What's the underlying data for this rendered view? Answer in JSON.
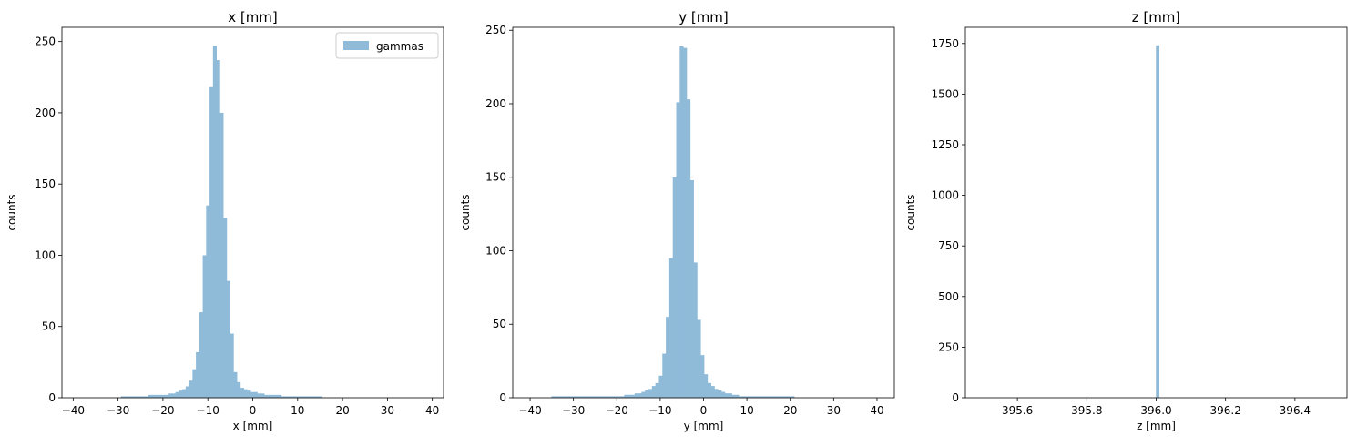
{
  "chart_data": [
    {
      "type": "bar",
      "title": "x [mm]",
      "xlabel": "x [mm]",
      "ylabel": "counts",
      "xlim": [
        -42.5,
        42.5
      ],
      "ylim": [
        0,
        260
      ],
      "xticks": [
        -40,
        -30,
        -20,
        -10,
        0,
        10,
        20,
        30,
        40
      ],
      "yticks": [
        0,
        50,
        100,
        150,
        200,
        250
      ],
      "grid": false,
      "legend": "top-right",
      "series": [
        {
          "name": "gammas",
          "color": "#8fbbd9",
          "bin_edges": [
            -38.5,
            37.5
          ],
          "values": [
            0,
            0,
            0,
            0,
            0,
            0,
            0,
            0,
            0,
            0,
            0,
            0,
            1,
            1,
            1,
            1,
            1,
            1,
            1,
            1,
            2,
            2,
            2,
            2,
            2,
            2,
            3,
            3,
            4,
            5,
            6,
            8,
            12,
            20,
            32,
            60,
            100,
            135,
            218,
            247,
            237,
            200,
            126,
            82,
            45,
            18,
            11,
            7,
            6,
            5,
            4,
            4,
            3,
            3,
            2,
            2,
            2,
            2,
            2,
            1,
            1,
            1,
            1,
            1,
            1,
            1,
            1,
            1,
            1,
            1,
            1,
            0,
            0,
            0,
            0,
            0,
            0,
            0,
            0,
            0,
            0,
            0,
            0,
            0,
            0,
            0,
            0,
            0,
            0,
            0,
            0,
            0,
            0,
            0,
            0,
            0,
            0,
            0,
            0,
            0
          ]
        }
      ]
    },
    {
      "type": "bar",
      "title": "y [mm]",
      "xlabel": "y [mm]",
      "ylabel": "counts",
      "xlim": [
        -44,
        44
      ],
      "ylim": [
        0,
        252
      ],
      "xticks": [
        -40,
        -30,
        -20,
        -10,
        0,
        10,
        20,
        30,
        40
      ],
      "yticks": [
        0,
        50,
        100,
        150,
        200,
        250
      ],
      "grid": false,
      "series": [
        {
          "name": "",
          "color": "#8fbbd9",
          "bin_edges": [
            -39.9,
            40.1
          ],
          "values": [
            0,
            0,
            0,
            0,
            0,
            0,
            1,
            1,
            1,
            1,
            1,
            1,
            1,
            1,
            1,
            1,
            1,
            1,
            1,
            1,
            1,
            1,
            1,
            1,
            1,
            1,
            1,
            2,
            2,
            2,
            3,
            3,
            4,
            5,
            6,
            8,
            10,
            15,
            30,
            55,
            95,
            150,
            201,
            239,
            238,
            203,
            148,
            92,
            53,
            29,
            16,
            10,
            8,
            6,
            5,
            4,
            3,
            3,
            2,
            2,
            1,
            1,
            1,
            1,
            1,
            1,
            1,
            1,
            1,
            1,
            1,
            1,
            1,
            1,
            1,
            1,
            0,
            0,
            0,
            0,
            0,
            0,
            0,
            0,
            0,
            0,
            0,
            0,
            0,
            0,
            0,
            0,
            0,
            0,
            0,
            0,
            0,
            0,
            0,
            0
          ]
        }
      ]
    },
    {
      "type": "bar",
      "title": "z [mm]",
      "xlabel": "z [mm]",
      "ylabel": "counts",
      "xlim": [
        395.45,
        396.55
      ],
      "ylim": [
        0,
        1830
      ],
      "xticks": [
        395.6,
        395.8,
        396.0,
        396.2,
        396.4
      ],
      "xtick_labels": [
        "395.6",
        "395.8",
        "396.0",
        "396.2",
        "396.4"
      ],
      "yticks": [
        0,
        250,
        500,
        750,
        1000,
        1250,
        1500,
        1750
      ],
      "grid": false,
      "series": [
        {
          "name": "",
          "color": "#8fbbd9",
          "bars": [
            {
              "x0": 395.9993,
              "x1": 396.0093,
              "value": 1741
            }
          ]
        }
      ]
    }
  ]
}
